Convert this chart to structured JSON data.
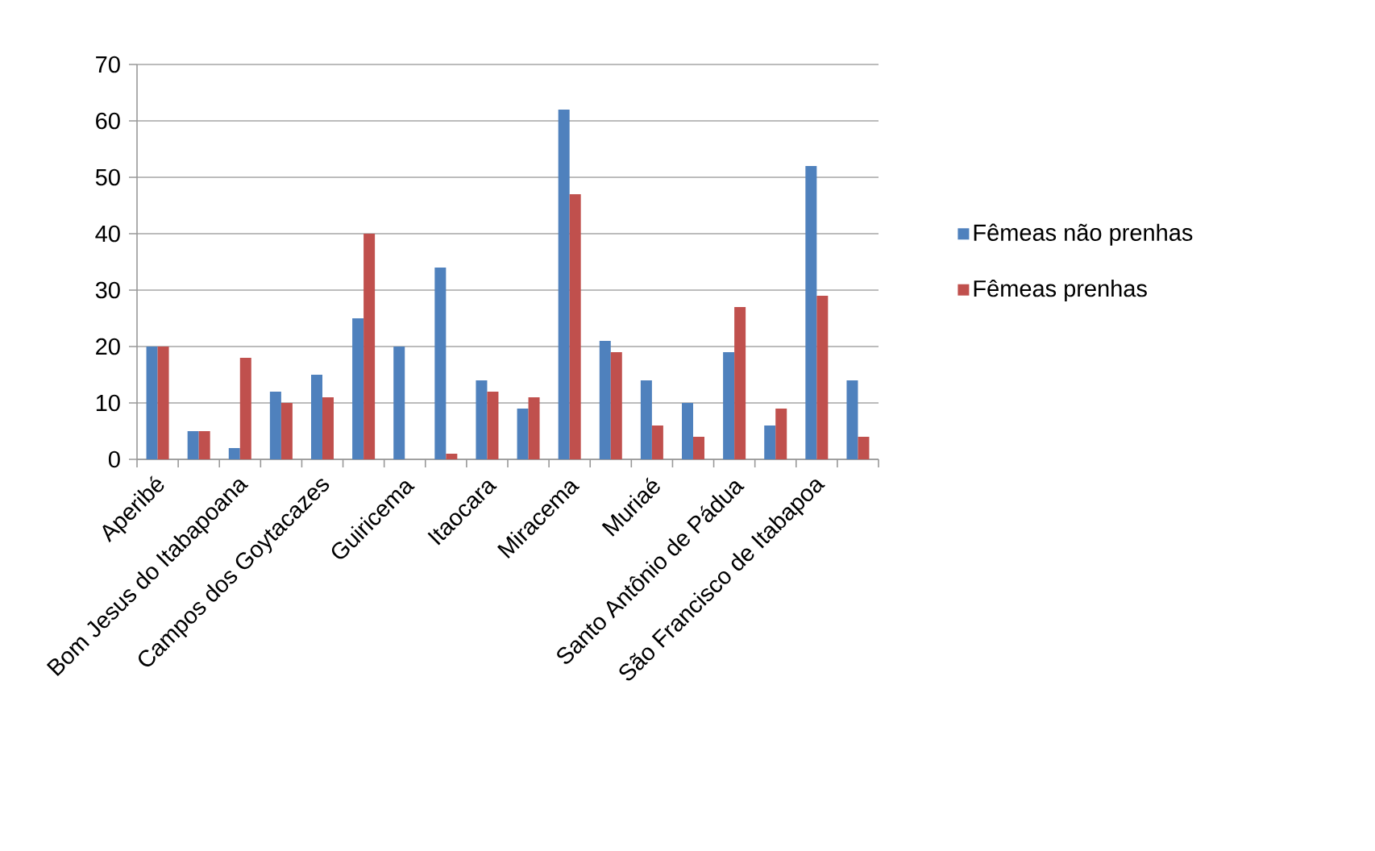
{
  "chart_data": {
    "type": "bar",
    "categories": [
      "Aperibé",
      null,
      "Bom Jesus do Itabapoana",
      null,
      "Campos dos Goytacazes",
      null,
      "Guiricema",
      null,
      "Itaocara",
      null,
      "Miracema",
      null,
      "Muriaé",
      null,
      "Santo Antônio de Pádua",
      null,
      "São Francisco de Itabapoa",
      null
    ],
    "series": [
      {
        "name": "Fêmeas  não prenhas",
        "color": "#4f81bd",
        "values": [
          20,
          5,
          2,
          12,
          15,
          25,
          20,
          34,
          14,
          9,
          62,
          21,
          14,
          10,
          19,
          6,
          52,
          14
        ]
      },
      {
        "name": "Fêmeas  prenhas",
        "color": "#c0504d",
        "values": [
          20,
          5,
          18,
          10,
          11,
          40,
          null,
          1,
          12,
          11,
          47,
          19,
          6,
          4,
          27,
          9,
          29,
          4
        ]
      }
    ],
    "ylim": [
      0,
      70
    ],
    "yticks": [
      0,
      10,
      20,
      30,
      40,
      50,
      60,
      70
    ],
    "grid": "y",
    "legend": "right"
  }
}
